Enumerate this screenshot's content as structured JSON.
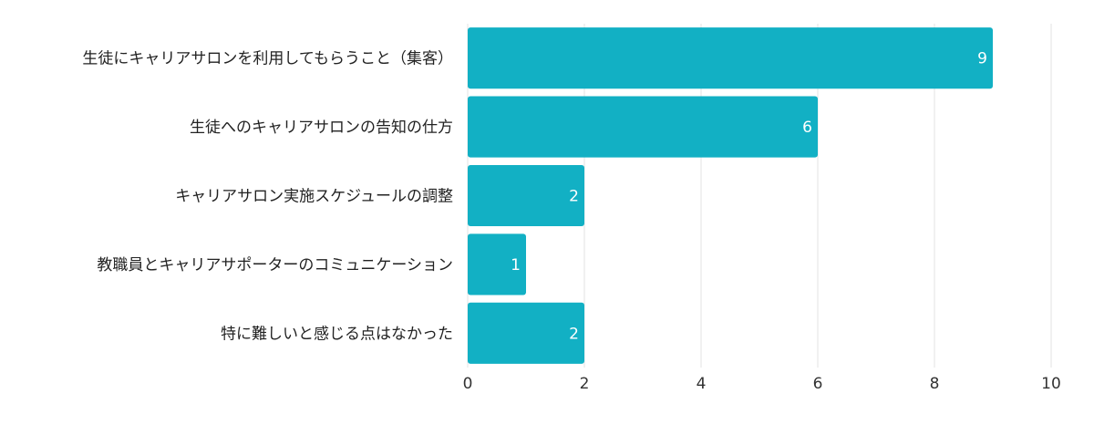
{
  "chart_data": {
    "type": "bar",
    "orientation": "horizontal",
    "categories": [
      "生徒にキャリアサロンを利用してもらうこと（集客）",
      "生徒へのキャリアサロンの告知の仕方",
      "キャリアサロン実施スケジュールの調整",
      "教職員とキャリアサポーターのコミュニケーション",
      "特に難しいと感じる点はなかった"
    ],
    "values": [
      9,
      6,
      2,
      1,
      2
    ],
    "color": "#12b0c4",
    "xlim": [
      0,
      10
    ],
    "xticks": [
      0,
      2,
      4,
      6,
      8,
      10
    ],
    "grid": true
  }
}
